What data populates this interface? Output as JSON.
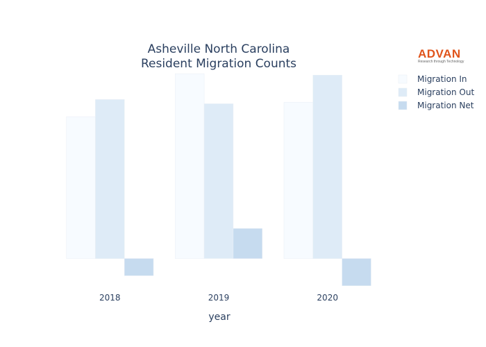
{
  "chart_data": {
    "type": "bar",
    "title_lines": [
      "Asheville North Carolina",
      "Resident Migration Counts"
    ],
    "xlabel": "year",
    "ylabel": "",
    "categories": [
      "2018",
      "2019",
      "2020"
    ],
    "series": [
      {
        "name": "Migration In",
        "color": "#f7fbff",
        "values": [
          4950,
          6450,
          5450
        ]
      },
      {
        "name": "Migration Out",
        "color": "#deebf7",
        "values": [
          5550,
          5400,
          6400
        ]
      },
      {
        "name": "Migration Net",
        "color": "#c6dbef",
        "values": [
          -600,
          1050,
          -950
        ]
      }
    ],
    "ylim": [
      -1150,
      6600
    ],
    "grid": false,
    "yaxis_visible": false,
    "legend_position": "top-right"
  },
  "logo": {
    "name": "ADVAN",
    "tagline": "Research through Technology"
  }
}
